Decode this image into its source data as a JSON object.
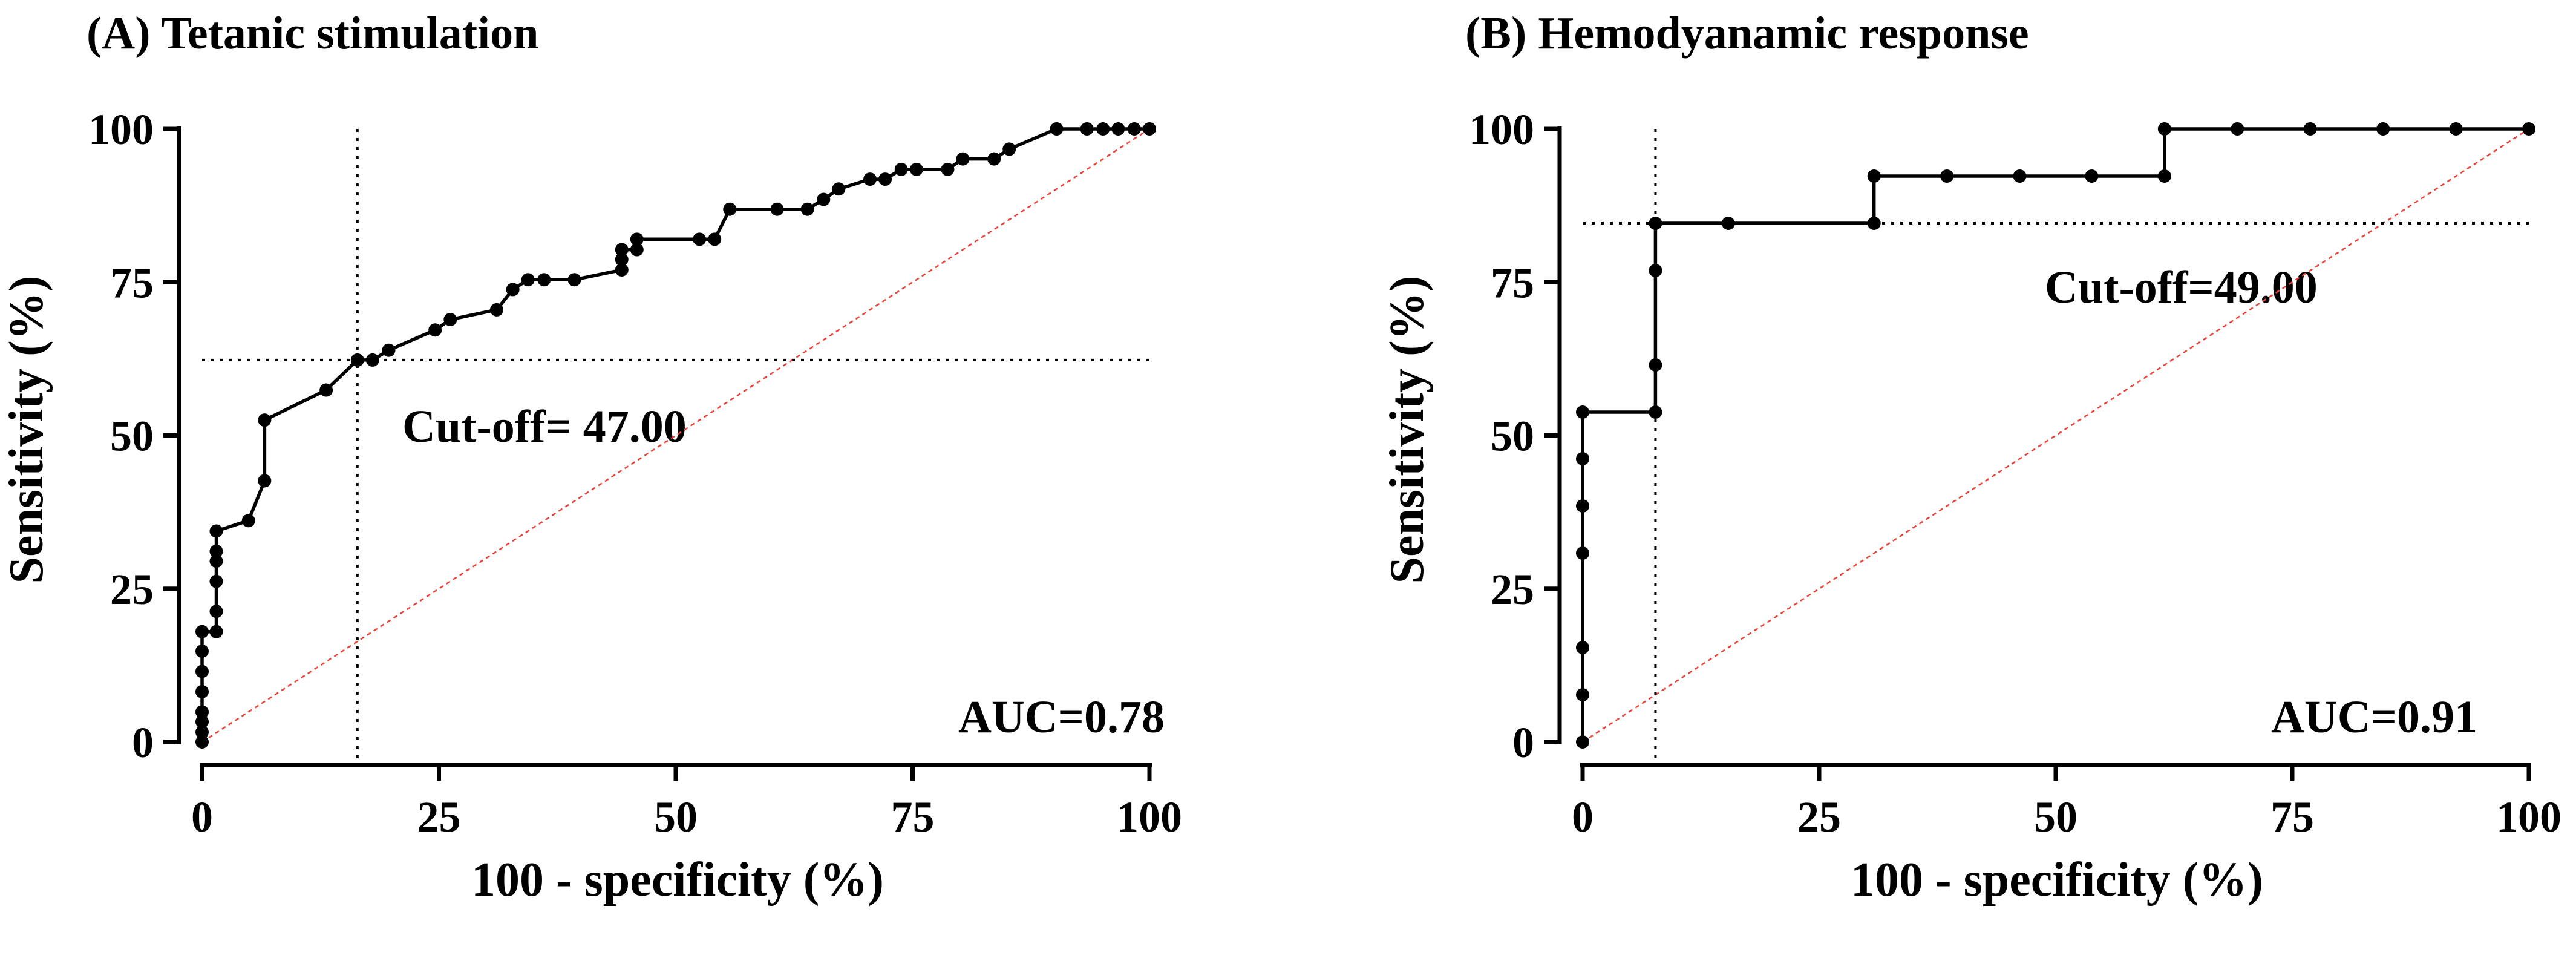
{
  "chart_data": [
    {
      "type": "line",
      "title": "(A) Tetanic stimulation",
      "xlabel": "100 - specificity (%)",
      "ylabel": "Sensitivity (%)",
      "xlim": [
        0,
        100
      ],
      "ylim": [
        0,
        100
      ],
      "xticks": [
        "0",
        "25",
        "50",
        "75",
        "100"
      ],
      "yticks": [
        "0",
        "25",
        "50",
        "75",
        "100"
      ],
      "series": [
        {
          "points": [
            [
              0,
              0
            ],
            [
              0,
              1.6
            ],
            [
              0,
              3.3
            ],
            [
              0,
              4.9
            ],
            [
              0,
              8.2
            ],
            [
              0,
              11.5
            ],
            [
              0,
              14.8
            ],
            [
              0,
              18
            ],
            [
              1.5,
              18
            ],
            [
              1.5,
              21.3
            ],
            [
              1.5,
              26.2
            ],
            [
              1.5,
              29.5
            ],
            [
              1.5,
              31.1
            ],
            [
              1.5,
              34.4
            ],
            [
              4.9,
              36.1
            ],
            [
              6.6,
              42.6
            ],
            [
              6.6,
              52.5
            ],
            [
              13.1,
              57.4
            ],
            [
              16.4,
              62.3
            ],
            [
              18,
              62.3
            ],
            [
              19.7,
              63.9
            ],
            [
              24.6,
              67.2
            ],
            [
              26.2,
              68.9
            ],
            [
              31.1,
              70.5
            ],
            [
              32.8,
              73.8
            ],
            [
              34.4,
              75.4
            ],
            [
              36.1,
              75.4
            ],
            [
              39.3,
              75.4
            ],
            [
              44.3,
              77
            ],
            [
              44.3,
              78.7
            ],
            [
              44.3,
              80.3
            ],
            [
              45.9,
              80.3
            ],
            [
              45.9,
              82
            ],
            [
              52.5,
              82
            ],
            [
              54.1,
              82
            ],
            [
              55.7,
              86.9
            ],
            [
              60.7,
              86.9
            ],
            [
              63.9,
              86.9
            ],
            [
              65.6,
              88.5
            ],
            [
              67.2,
              90.2
            ],
            [
              70.5,
              91.8
            ],
            [
              72.1,
              91.8
            ],
            [
              73.8,
              93.4
            ],
            [
              75.4,
              93.4
            ],
            [
              78.7,
              93.4
            ],
            [
              80.3,
              95.1
            ],
            [
              83.6,
              95.1
            ],
            [
              85.2,
              96.7
            ],
            [
              90.2,
              100
            ],
            [
              93.4,
              100
            ],
            [
              95.1,
              100
            ],
            [
              96.7,
              100
            ],
            [
              98.4,
              100
            ],
            [
              100,
              100
            ]
          ]
        }
      ],
      "reference_line": [
        [
          0,
          0
        ],
        [
          100,
          100
        ]
      ],
      "cutoff_x": 16.4,
      "cutoff_y": 62.3,
      "cutoff_label": "Cut-off= 47.00",
      "auc_label": "AUC=0.78",
      "grid": false,
      "colors": {
        "roc": "#000000",
        "reference": "#e8453c",
        "cutoff": "#000000"
      }
    },
    {
      "type": "line",
      "title": "(B) Hemodyanamic response",
      "xlabel": "100 - specificity (%)",
      "ylabel": "Sensitivity (%)",
      "xlim": [
        0,
        100
      ],
      "ylim": [
        0,
        100
      ],
      "xticks": [
        "0",
        "25",
        "50",
        "75",
        "100"
      ],
      "yticks": [
        "0",
        "25",
        "50",
        "75",
        "100"
      ],
      "series": [
        {
          "points": [
            [
              0,
              0
            ],
            [
              0,
              7.7
            ],
            [
              0,
              15.4
            ],
            [
              0,
              30.8
            ],
            [
              0,
              38.5
            ],
            [
              0,
              46.2
            ],
            [
              0,
              53.8
            ],
            [
              7.7,
              53.8
            ],
            [
              7.7,
              61.5
            ],
            [
              7.7,
              76.9
            ],
            [
              7.7,
              84.6
            ],
            [
              15.4,
              84.6
            ],
            [
              30.8,
              84.6
            ],
            [
              30.8,
              92.3
            ],
            [
              38.5,
              92.3
            ],
            [
              46.2,
              92.3
            ],
            [
              53.8,
              92.3
            ],
            [
              61.5,
              92.3
            ],
            [
              61.5,
              100
            ],
            [
              69.2,
              100
            ],
            [
              76.9,
              100
            ],
            [
              84.6,
              100
            ],
            [
              92.3,
              100
            ],
            [
              100,
              100
            ]
          ]
        }
      ],
      "reference_line": [
        [
          0,
          0
        ],
        [
          100,
          100
        ]
      ],
      "cutoff_x": 7.7,
      "cutoff_y": 84.6,
      "cutoff_label": "Cut-off=49.00",
      "auc_label": "AUC=0.91",
      "grid": false,
      "colors": {
        "roc": "#000000",
        "reference": "#e8453c",
        "cutoff": "#000000"
      }
    }
  ]
}
